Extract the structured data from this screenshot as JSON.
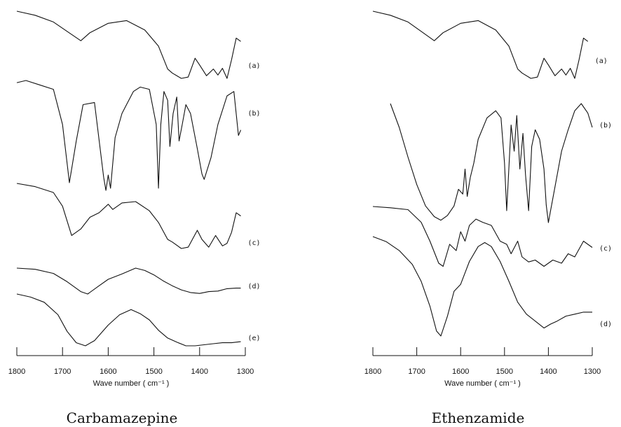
{
  "chart_data": [
    {
      "type": "line",
      "title": "Carbamazepine",
      "xlabel": "Wave number ( cm⁻¹ )",
      "xlim": [
        1800,
        1300
      ],
      "x_ticks": [
        1800,
        1700,
        1600,
        1500,
        1400,
        1300
      ],
      "y_axis": "none (stacked spectra, no y scale)",
      "series": [
        {
          "name": "(a)",
          "x": [
            1800,
            1760,
            1720,
            1690,
            1660,
            1640,
            1600,
            1560,
            1520,
            1490,
            1470,
            1460,
            1440,
            1425,
            1410,
            1400,
            1385,
            1370,
            1360,
            1350,
            1340,
            1330,
            1320,
            1310
          ],
          "y": [
            0.0,
            0.06,
            0.16,
            0.3,
            0.44,
            0.32,
            0.18,
            0.14,
            0.28,
            0.52,
            0.86,
            0.92,
            1.0,
            0.98,
            0.7,
            0.8,
            0.96,
            0.86,
            0.95,
            0.85,
            1.0,
            0.72,
            0.4,
            0.45
          ]
        },
        {
          "name": "(b)",
          "x": [
            1800,
            1780,
            1750,
            1720,
            1700,
            1685,
            1670,
            1655,
            1630,
            1610,
            1605,
            1600,
            1595,
            1585,
            1570,
            1560,
            1545,
            1530,
            1510,
            1495,
            1490,
            1485,
            1478,
            1470,
            1465,
            1458,
            1450,
            1445,
            1438,
            1430,
            1420,
            1405,
            1395,
            1390,
            1375,
            1360,
            1340,
            1325,
            1315,
            1310
          ],
          "y": [
            0.02,
            0.0,
            0.04,
            0.08,
            0.4,
            0.93,
            0.55,
            0.22,
            0.2,
            0.88,
            1.0,
            0.86,
            0.98,
            0.52,
            0.3,
            0.22,
            0.1,
            0.06,
            0.08,
            0.4,
            0.98,
            0.4,
            0.1,
            0.18,
            0.6,
            0.3,
            0.15,
            0.55,
            0.4,
            0.22,
            0.3,
            0.62,
            0.85,
            0.9,
            0.7,
            0.4,
            0.14,
            0.1,
            0.5,
            0.45
          ]
        },
        {
          "name": "(c)",
          "x": [
            1800,
            1760,
            1720,
            1700,
            1680,
            1660,
            1640,
            1620,
            1600,
            1590,
            1570,
            1540,
            1510,
            1490,
            1470,
            1460,
            1440,
            1425,
            1405,
            1395,
            1380,
            1365,
            1350,
            1340,
            1330,
            1320,
            1310
          ],
          "y": [
            0.0,
            0.05,
            0.14,
            0.35,
            0.8,
            0.7,
            0.52,
            0.45,
            0.32,
            0.4,
            0.3,
            0.28,
            0.42,
            0.6,
            0.86,
            0.9,
            1.0,
            0.98,
            0.72,
            0.86,
            0.98,
            0.8,
            0.96,
            0.92,
            0.75,
            0.45,
            0.5
          ]
        },
        {
          "name": "(d)",
          "x": [
            1800,
            1760,
            1720,
            1690,
            1660,
            1645,
            1620,
            1600,
            1570,
            1540,
            1520,
            1500,
            1480,
            1460,
            1440,
            1420,
            1400,
            1380,
            1360,
            1340,
            1320,
            1310
          ],
          "y": [
            0.12,
            0.16,
            0.3,
            0.58,
            0.92,
            1.0,
            0.72,
            0.5,
            0.32,
            0.12,
            0.2,
            0.35,
            0.55,
            0.72,
            0.86,
            0.95,
            0.98,
            0.92,
            0.9,
            0.82,
            0.8,
            0.8
          ]
        },
        {
          "name": "(e)",
          "x": [
            1800,
            1770,
            1740,
            1710,
            1690,
            1670,
            1650,
            1630,
            1600,
            1575,
            1550,
            1530,
            1510,
            1490,
            1470,
            1450,
            1430,
            1410,
            1390,
            1370,
            1350,
            1330,
            1310
          ],
          "y": [
            0.0,
            0.06,
            0.16,
            0.4,
            0.72,
            0.94,
            1.0,
            0.9,
            0.6,
            0.4,
            0.3,
            0.38,
            0.5,
            0.7,
            0.85,
            0.93,
            1.0,
            1.0,
            0.98,
            0.96,
            0.94,
            0.94,
            0.92
          ]
        }
      ],
      "grid": false
    },
    {
      "type": "line",
      "title": "Ethenzamide",
      "xlabel": "Wave number ( cm⁻¹ )",
      "xlim": [
        1800,
        1300
      ],
      "x_ticks": [
        1800,
        1700,
        1600,
        1500,
        1400,
        1300
      ],
      "y_axis": "none (stacked spectra, no y scale)",
      "series": [
        {
          "name": "(a)",
          "x": [
            1800,
            1760,
            1720,
            1690,
            1660,
            1640,
            1600,
            1560,
            1520,
            1490,
            1470,
            1460,
            1440,
            1425,
            1410,
            1400,
            1385,
            1370,
            1360,
            1350,
            1340,
            1330,
            1320,
            1310
          ],
          "y": [
            0.0,
            0.06,
            0.16,
            0.3,
            0.44,
            0.32,
            0.18,
            0.14,
            0.28,
            0.52,
            0.86,
            0.92,
            1.0,
            0.98,
            0.7,
            0.8,
            0.96,
            0.86,
            0.95,
            0.85,
            1.0,
            0.72,
            0.4,
            0.45
          ]
        },
        {
          "name": "(b)",
          "x": [
            1760,
            1740,
            1720,
            1700,
            1680,
            1660,
            1645,
            1630,
            1615,
            1605,
            1595,
            1590,
            1585,
            1578,
            1570,
            1560,
            1540,
            1520,
            1508,
            1500,
            1495,
            1485,
            1478,
            1472,
            1465,
            1458,
            1452,
            1445,
            1438,
            1430,
            1420,
            1410,
            1405,
            1400,
            1395,
            1385,
            1370,
            1355,
            1340,
            1325,
            1310,
            1300
          ],
          "y": [
            0.0,
            0.2,
            0.45,
            0.68,
            0.86,
            0.95,
            0.98,
            0.94,
            0.86,
            0.72,
            0.76,
            0.55,
            0.78,
            0.62,
            0.5,
            0.3,
            0.12,
            0.06,
            0.12,
            0.5,
            0.9,
            0.18,
            0.4,
            0.1,
            0.55,
            0.25,
            0.6,
            0.9,
            0.36,
            0.22,
            0.3,
            0.55,
            0.85,
            1.0,
            0.9,
            0.7,
            0.4,
            0.22,
            0.06,
            0.0,
            0.08,
            0.2
          ]
        },
        {
          "name": "(c)",
          "x": [
            1800,
            1760,
            1720,
            1690,
            1670,
            1650,
            1640,
            1625,
            1610,
            1600,
            1590,
            1580,
            1565,
            1550,
            1530,
            1510,
            1495,
            1485,
            1470,
            1460,
            1445,
            1430,
            1410,
            1390,
            1370,
            1355,
            1340,
            1320,
            1310,
            1300
          ],
          "y": [
            0.0,
            0.02,
            0.05,
            0.25,
            0.55,
            0.9,
            0.95,
            0.6,
            0.7,
            0.4,
            0.55,
            0.3,
            0.2,
            0.25,
            0.3,
            0.55,
            0.6,
            0.75,
            0.55,
            0.8,
            0.88,
            0.85,
            0.95,
            0.85,
            0.9,
            0.75,
            0.8,
            0.55,
            0.6,
            0.65
          ]
        },
        {
          "name": "(d)",
          "x": [
            1800,
            1770,
            1740,
            1710,
            1690,
            1670,
            1655,
            1645,
            1630,
            1615,
            1600,
            1580,
            1560,
            1545,
            1530,
            1510,
            1490,
            1470,
            1450,
            1430,
            1410,
            1395,
            1380,
            1360,
            1340,
            1320,
            1300
          ],
          "y": [
            0.0,
            0.05,
            0.14,
            0.28,
            0.45,
            0.7,
            0.95,
            1.0,
            0.8,
            0.55,
            0.48,
            0.25,
            0.1,
            0.06,
            0.1,
            0.25,
            0.45,
            0.66,
            0.78,
            0.85,
            0.92,
            0.88,
            0.85,
            0.8,
            0.78,
            0.76,
            0.76
          ]
        }
      ],
      "grid": false
    }
  ]
}
